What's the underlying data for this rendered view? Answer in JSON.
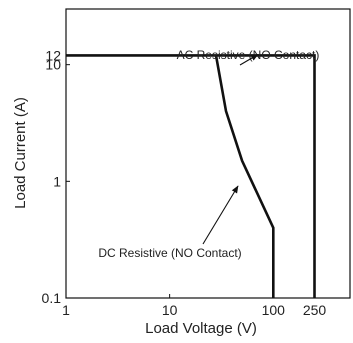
{
  "chart_data": {
    "type": "line",
    "xlabel": "Load Voltage (V)",
    "ylabel": "Load Current (A)",
    "x_scale": "log",
    "y_scale": "log",
    "xlim": [
      1,
      550
    ],
    "ylim": [
      0.1,
      30
    ],
    "x_ticks": [
      {
        "value": 1,
        "label": "1"
      },
      {
        "value": 10,
        "label": "10"
      },
      {
        "value": 100,
        "label": "100"
      },
      {
        "value": 250,
        "label": "250"
      }
    ],
    "y_ticks": [
      {
        "value": 0.1,
        "label": "0.1"
      },
      {
        "value": 1,
        "label": "1"
      },
      {
        "value": 10,
        "label": "10"
      },
      {
        "value": 12,
        "label": "12"
      }
    ],
    "grid": false,
    "series": [
      {
        "name": "AC Resistive (NO Contact)",
        "x": [
          1,
          250,
          250
        ],
        "y": [
          12,
          12,
          0.1
        ],
        "color": "#111111"
      },
      {
        "name": "DC Resistive (NO Contact)",
        "x": [
          28,
          35,
          50,
          100,
          100
        ],
        "y": [
          12,
          4,
          1.5,
          0.4,
          0.1
        ],
        "color": "#111111"
      }
    ],
    "annotations": [
      {
        "text": "AC Resistive (NO Contact)",
        "target_series": 0
      },
      {
        "text": "DC Resistive (NO Contact)",
        "target_series": 1
      }
    ]
  }
}
